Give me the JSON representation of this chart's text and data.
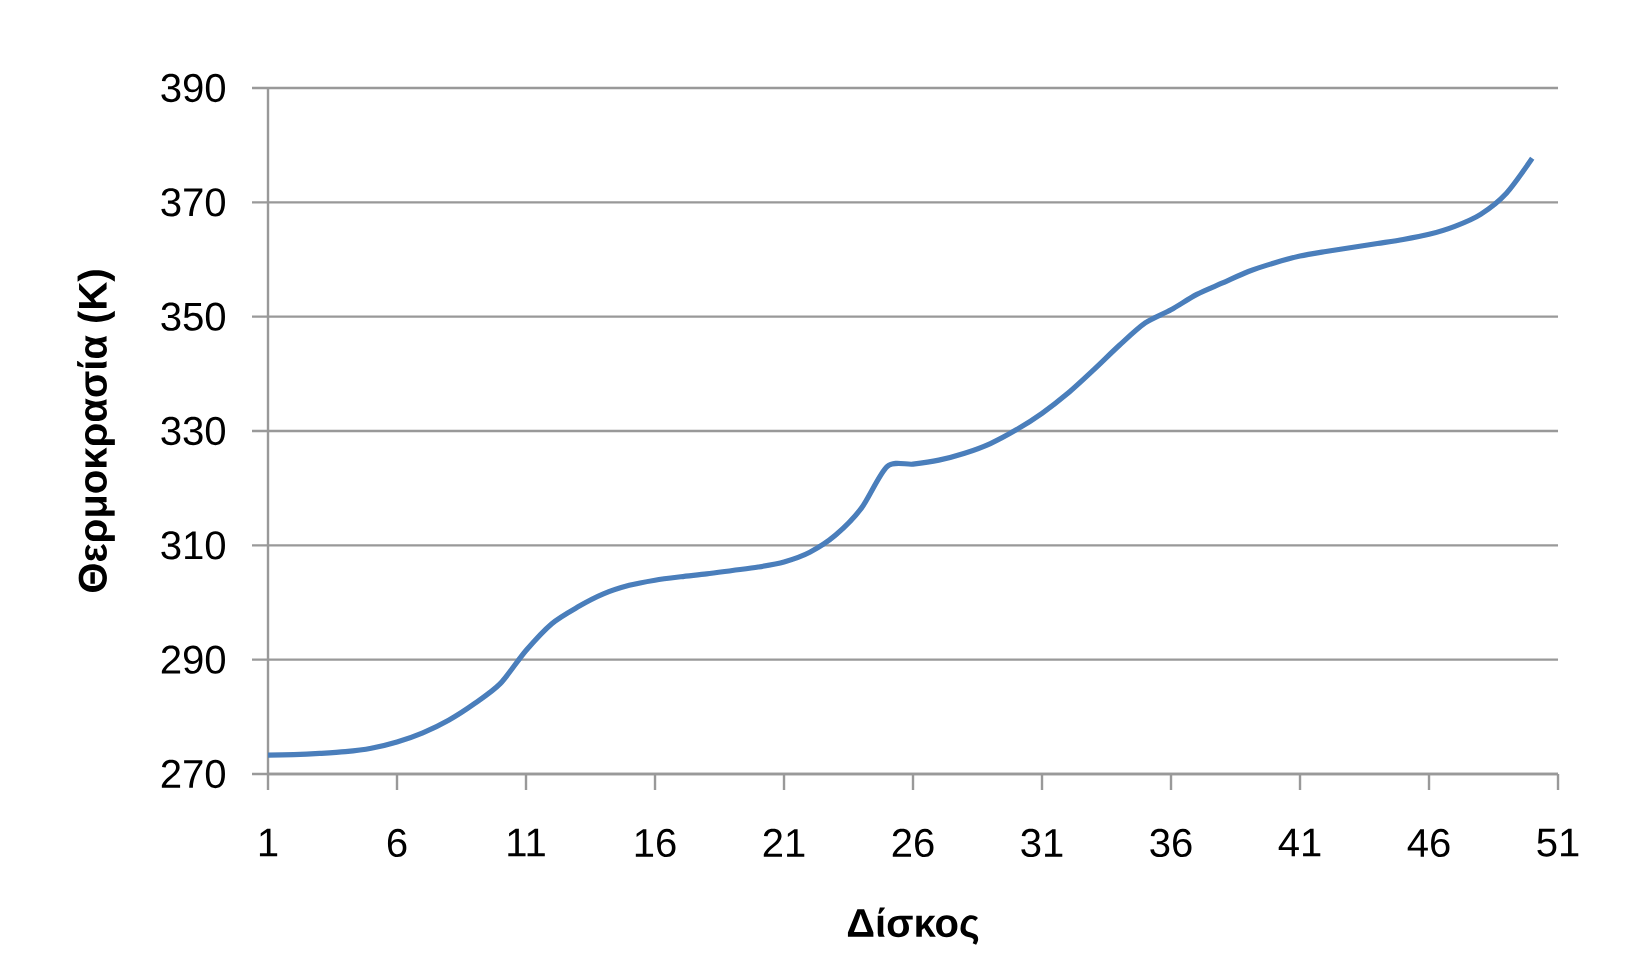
{
  "chart_data": {
    "type": "line",
    "xlabel": "Δίσκος",
    "ylabel": "Θερμοκρασία (K)",
    "x": [
      1,
      2,
      3,
      4,
      5,
      6,
      7,
      8,
      9,
      10,
      11,
      12,
      13,
      14,
      15,
      16,
      17,
      18,
      19,
      20,
      21,
      22,
      23,
      24,
      25,
      26,
      27,
      28,
      29,
      30,
      31,
      32,
      33,
      34,
      35,
      36,
      37,
      38,
      39,
      40,
      41,
      42,
      43,
      44,
      45,
      46,
      47,
      48,
      49,
      50
    ],
    "series": [
      {
        "color": "#4a7ebb",
        "values": [
          273.3,
          273.4,
          273.6,
          273.9,
          274.5,
          275.6,
          277.2,
          279.4,
          282.3,
          285.8,
          291.6,
          296.3,
          299.2,
          301.5,
          303.0,
          303.9,
          304.5,
          305.0,
          305.6,
          306.2,
          307.1,
          308.8,
          311.8,
          316.5,
          323.8,
          324.2,
          324.9,
          326.1,
          327.8,
          330.2,
          333.1,
          336.6,
          340.7,
          345.0,
          348.9,
          351.2,
          353.9,
          355.9,
          357.9,
          359.4,
          360.6,
          361.4,
          362.1,
          362.8,
          363.5,
          364.4,
          365.8,
          367.9,
          371.6,
          377.7
        ]
      }
    ],
    "xlim": [
      1,
      51
    ],
    "xticks": [
      1,
      6,
      11,
      16,
      21,
      26,
      31,
      36,
      41,
      46,
      51
    ],
    "ylim": [
      270,
      390
    ],
    "yticks": [
      270,
      290,
      310,
      330,
      350,
      370,
      390
    ],
    "grid": "y",
    "marker": "none",
    "line_style": "solid"
  }
}
